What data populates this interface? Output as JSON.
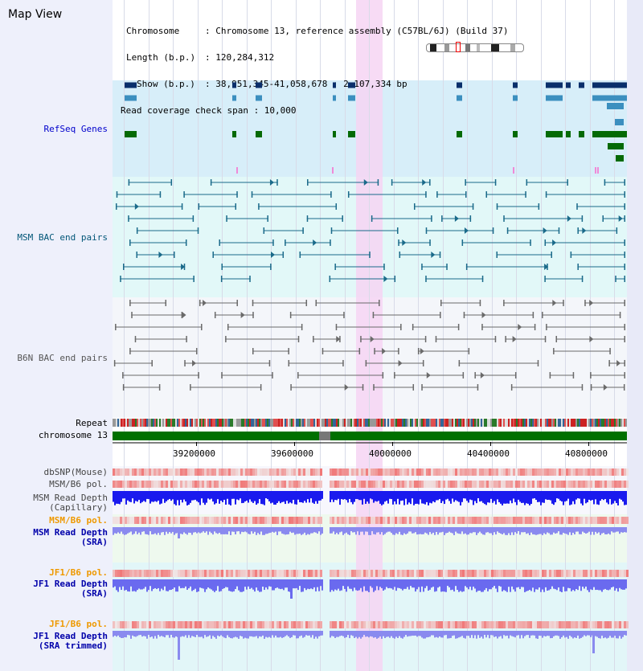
{
  "header": {
    "title": "Map View",
    "chromosome_key": "Chromosome",
    "chromosome_val": ": Chromosome 13, reference assembly (C57BL/6J) (Build 37)",
    "length_key": "Length (b.p.)",
    "length_val": ": 120,284,312",
    "show_key": "Show (b.p.)",
    "show_val": ": 38,951,345-41,058,678 : 2,107,334 bp",
    "coverage_text": "Read coverage check span : 10,000"
  },
  "tracks": {
    "refseq": "RefSeq Genes",
    "msm_bac": "MSM BAC end pairs",
    "b6n_bac": "B6N BAC end pairs",
    "repeat": "Repeat",
    "chromosome": "chromosome 13",
    "dbsnp": "dbSNP(Mouse)",
    "msm_b6_pol_1": "MSM/B6 pol.",
    "msm_depth_cap": "MSM Read Depth\n(Capillary)",
    "msm_b6_pol_2": "MSM/B6 pol.",
    "msm_depth_sra": "MSM Read Depth\n(SRA)",
    "jf1_b6_pol_1": "JF1/B6 pol.",
    "jf1_depth_sra": "JF1 Read Depth\n(SRA)",
    "jf1_b6_pol_2": "JF1/B6 pol.",
    "jf1_depth_trim": "JF1 Read Depth\n(SRA trimmed)"
  },
  "axis": {
    "ticks": [
      "39200000",
      "39600000",
      "40000000",
      "40400000",
      "40800000"
    ]
  },
  "colors": {
    "refseq_label": "#0000cc",
    "msm_label": "#005577",
    "b6n_label": "#555555",
    "orange_label": "#ee9900",
    "depth_label": "#0000aa",
    "highlight": "#f6d5f3",
    "gene_navy": "#0a2f6b",
    "gene_teal": "#3b8fbf",
    "gene_green": "#056a05",
    "chrom_green": "#007000"
  },
  "icons": {
    "ideogram": "chromosome-ideogram-icon"
  }
}
